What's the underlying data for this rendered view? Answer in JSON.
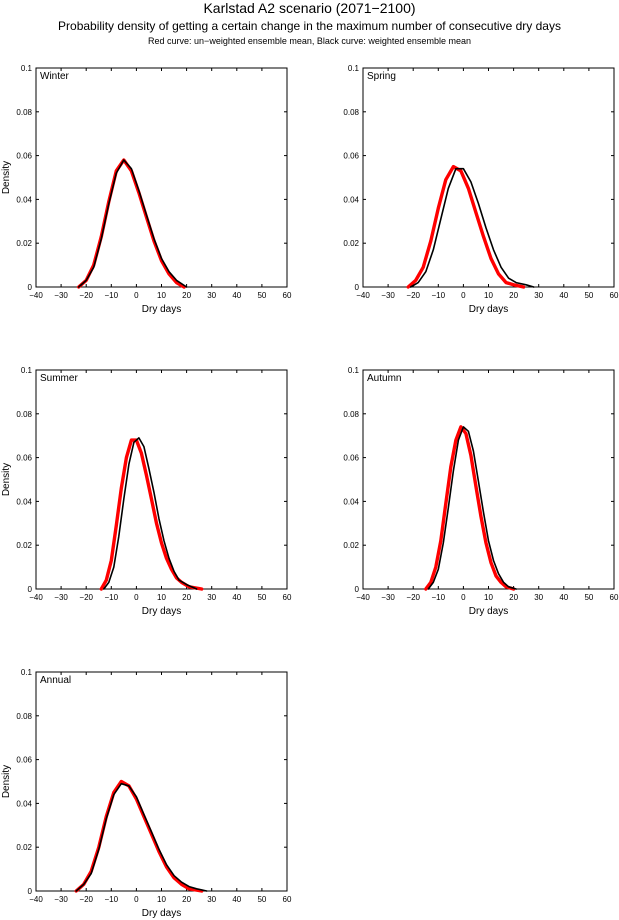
{
  "header": {
    "title": "Karlstad A2 scenario (2071−2100)",
    "subtitle": "Probability density of getting a certain change in the maximum number of consecutive dry days",
    "caption": "Red curve: un−weighted ensemble mean, Black curve: weighted ensemble mean"
  },
  "colors": {
    "unweighted": "#ff0000",
    "weighted": "#000000",
    "axes": "#000000",
    "background": "#ffffff"
  },
  "chart_data": [
    {
      "type": "line",
      "panel": "Winter",
      "xlabel": "Dry days",
      "ylabel": "Density",
      "xlim": [
        -40,
        60
      ],
      "ylim": [
        0,
        0.1
      ],
      "xticks": [
        -40,
        -30,
        -20,
        -10,
        0,
        10,
        20,
        30,
        40,
        50,
        60
      ],
      "yticks": [
        0,
        0.02,
        0.04,
        0.06,
        0.08,
        0.1
      ],
      "series": [
        {
          "color": "red",
          "points": [
            [
              -23,
              0
            ],
            [
              -20,
              0.003
            ],
            [
              -17,
              0.01
            ],
            [
              -14,
              0.023
            ],
            [
              -11,
              0.039
            ],
            [
              -8,
              0.053
            ],
            [
              -5,
              0.058
            ],
            [
              -2,
              0.053
            ],
            [
              1,
              0.043
            ],
            [
              4,
              0.032
            ],
            [
              7,
              0.021
            ],
            [
              10,
              0.012
            ],
            [
              13,
              0.006
            ],
            [
              16,
              0.002
            ],
            [
              19,
              0
            ]
          ]
        },
        {
          "color": "black",
          "points": [
            [
              -23,
              0
            ],
            [
              -20,
              0.003
            ],
            [
              -17,
              0.009
            ],
            [
              -14,
              0.022
            ],
            [
              -11,
              0.038
            ],
            [
              -8,
              0.052
            ],
            [
              -5,
              0.058
            ],
            [
              -2,
              0.054
            ],
            [
              1,
              0.044
            ],
            [
              4,
              0.033
            ],
            [
              7,
              0.022
            ],
            [
              10,
              0.013
            ],
            [
              13,
              0.007
            ],
            [
              16,
              0.003
            ],
            [
              20,
              0
            ]
          ]
        }
      ]
    },
    {
      "type": "line",
      "panel": "Spring",
      "xlabel": "Dry days",
      "ylabel": "",
      "xlim": [
        -40,
        60
      ],
      "ylim": [
        0,
        0.1
      ],
      "xticks": [
        -40,
        -30,
        -20,
        -10,
        0,
        10,
        20,
        30,
        40,
        50,
        60
      ],
      "yticks": [
        0,
        0.02,
        0.04,
        0.06,
        0.08,
        0.1
      ],
      "series": [
        {
          "color": "red",
          "points": [
            [
              -22,
              0
            ],
            [
              -19,
              0.003
            ],
            [
              -16,
              0.009
            ],
            [
              -13,
              0.021
            ],
            [
              -10,
              0.036
            ],
            [
              -7,
              0.049
            ],
            [
              -4,
              0.055
            ],
            [
              -1,
              0.053
            ],
            [
              2,
              0.045
            ],
            [
              5,
              0.034
            ],
            [
              8,
              0.023
            ],
            [
              11,
              0.013
            ],
            [
              14,
              0.006
            ],
            [
              17,
              0.002
            ],
            [
              20,
              0.001
            ],
            [
              24,
              0
            ]
          ]
        },
        {
          "color": "black",
          "points": [
            [
              -21,
              0
            ],
            [
              -18,
              0.002
            ],
            [
              -15,
              0.007
            ],
            [
              -12,
              0.017
            ],
            [
              -9,
              0.031
            ],
            [
              -6,
              0.045
            ],
            [
              -3,
              0.054
            ],
            [
              0,
              0.054
            ],
            [
              3,
              0.048
            ],
            [
              6,
              0.038
            ],
            [
              9,
              0.027
            ],
            [
              12,
              0.017
            ],
            [
              15,
              0.009
            ],
            [
              18,
              0.004
            ],
            [
              21,
              0.002
            ],
            [
              25,
              0.001
            ],
            [
              28,
              0
            ]
          ]
        }
      ]
    },
    {
      "type": "line",
      "panel": "Summer",
      "xlabel": "Dry days",
      "ylabel": "Density",
      "xlim": [
        -40,
        60
      ],
      "ylim": [
        0,
        0.1
      ],
      "xticks": [
        -40,
        -30,
        -20,
        -10,
        0,
        10,
        20,
        30,
        40,
        50,
        60
      ],
      "yticks": [
        0,
        0.02,
        0.04,
        0.06,
        0.08,
        0.1
      ],
      "series": [
        {
          "color": "red",
          "points": [
            [
              -14,
              0
            ],
            [
              -12,
              0.004
            ],
            [
              -10,
              0.013
            ],
            [
              -8,
              0.029
            ],
            [
              -6,
              0.046
            ],
            [
              -4,
              0.06
            ],
            [
              -2,
              0.068
            ],
            [
              0,
              0.068
            ],
            [
              2,
              0.062
            ],
            [
              4,
              0.052
            ],
            [
              6,
              0.041
            ],
            [
              8,
              0.03
            ],
            [
              10,
              0.021
            ],
            [
              12,
              0.014
            ],
            [
              14,
              0.009
            ],
            [
              16,
              0.005
            ],
            [
              18,
              0.003
            ],
            [
              21,
              0.001
            ],
            [
              26,
              0
            ]
          ]
        },
        {
          "color": "black",
          "points": [
            [
              -13,
              0
            ],
            [
              -11,
              0.003
            ],
            [
              -9,
              0.01
            ],
            [
              -7,
              0.024
            ],
            [
              -5,
              0.041
            ],
            [
              -3,
              0.057
            ],
            [
              -1,
              0.067
            ],
            [
              1,
              0.069
            ],
            [
              3,
              0.065
            ],
            [
              5,
              0.055
            ],
            [
              7,
              0.044
            ],
            [
              9,
              0.032
            ],
            [
              11,
              0.022
            ],
            [
              13,
              0.014
            ],
            [
              15,
              0.008
            ],
            [
              17,
              0.004
            ],
            [
              20,
              0.002
            ],
            [
              24,
              0
            ]
          ]
        }
      ]
    },
    {
      "type": "line",
      "panel": "Autumn",
      "xlabel": "Dry days",
      "ylabel": "",
      "xlim": [
        -40,
        60
      ],
      "ylim": [
        0,
        0.1
      ],
      "xticks": [
        -40,
        -30,
        -20,
        -10,
        0,
        10,
        20,
        30,
        40,
        50,
        60
      ],
      "yticks": [
        0,
        0.02,
        0.04,
        0.06,
        0.08,
        0.1
      ],
      "series": [
        {
          "color": "red",
          "points": [
            [
              -15,
              0
            ],
            [
              -13,
              0.003
            ],
            [
              -11,
              0.01
            ],
            [
              -9,
              0.022
            ],
            [
              -7,
              0.039
            ],
            [
              -5,
              0.056
            ],
            [
              -3,
              0.068
            ],
            [
              -1,
              0.074
            ],
            [
              1,
              0.071
            ],
            [
              3,
              0.061
            ],
            [
              5,
              0.047
            ],
            [
              7,
              0.033
            ],
            [
              9,
              0.021
            ],
            [
              11,
              0.012
            ],
            [
              13,
              0.006
            ],
            [
              15,
              0.003
            ],
            [
              17,
              0.001
            ],
            [
              20,
              0
            ]
          ]
        },
        {
          "color": "black",
          "points": [
            [
              -14,
              0
            ],
            [
              -12,
              0.003
            ],
            [
              -10,
              0.009
            ],
            [
              -8,
              0.021
            ],
            [
              -6,
              0.037
            ],
            [
              -4,
              0.054
            ],
            [
              -2,
              0.068
            ],
            [
              0,
              0.074
            ],
            [
              2,
              0.072
            ],
            [
              4,
              0.063
            ],
            [
              6,
              0.049
            ],
            [
              8,
              0.035
            ],
            [
              10,
              0.022
            ],
            [
              12,
              0.013
            ],
            [
              14,
              0.007
            ],
            [
              16,
              0.003
            ],
            [
              18,
              0.001
            ],
            [
              21,
              0
            ]
          ]
        }
      ]
    },
    {
      "type": "line",
      "panel": "Annual",
      "xlabel": "Dry days",
      "ylabel": "Density",
      "xlim": [
        -40,
        60
      ],
      "ylim": [
        0,
        0.1
      ],
      "xticks": [
        -40,
        -30,
        -20,
        -10,
        0,
        10,
        20,
        30,
        40,
        50,
        60
      ],
      "yticks": [
        0,
        0.02,
        0.04,
        0.06,
        0.08,
        0.1
      ],
      "series": [
        {
          "color": "red",
          "points": [
            [
              -24,
              0
            ],
            [
              -21,
              0.003
            ],
            [
              -18,
              0.009
            ],
            [
              -15,
              0.02
            ],
            [
              -12,
              0.034
            ],
            [
              -9,
              0.045
            ],
            [
              -6,
              0.05
            ],
            [
              -3,
              0.048
            ],
            [
              0,
              0.042
            ],
            [
              3,
              0.034
            ],
            [
              6,
              0.026
            ],
            [
              9,
              0.018
            ],
            [
              12,
              0.011
            ],
            [
              15,
              0.006
            ],
            [
              18,
              0.003
            ],
            [
              21,
              0.001
            ],
            [
              26,
              0
            ]
          ]
        },
        {
          "color": "black",
          "points": [
            [
              -24,
              0
            ],
            [
              -21,
              0.003
            ],
            [
              -18,
              0.008
            ],
            [
              -15,
              0.019
            ],
            [
              -12,
              0.033
            ],
            [
              -9,
              0.044
            ],
            [
              -6,
              0.049
            ],
            [
              -3,
              0.048
            ],
            [
              0,
              0.043
            ],
            [
              3,
              0.035
            ],
            [
              6,
              0.027
            ],
            [
              9,
              0.019
            ],
            [
              12,
              0.012
            ],
            [
              15,
              0.007
            ],
            [
              18,
              0.004
            ],
            [
              21,
              0.002
            ],
            [
              24,
              0.001
            ],
            [
              28,
              0
            ]
          ]
        }
      ]
    }
  ]
}
